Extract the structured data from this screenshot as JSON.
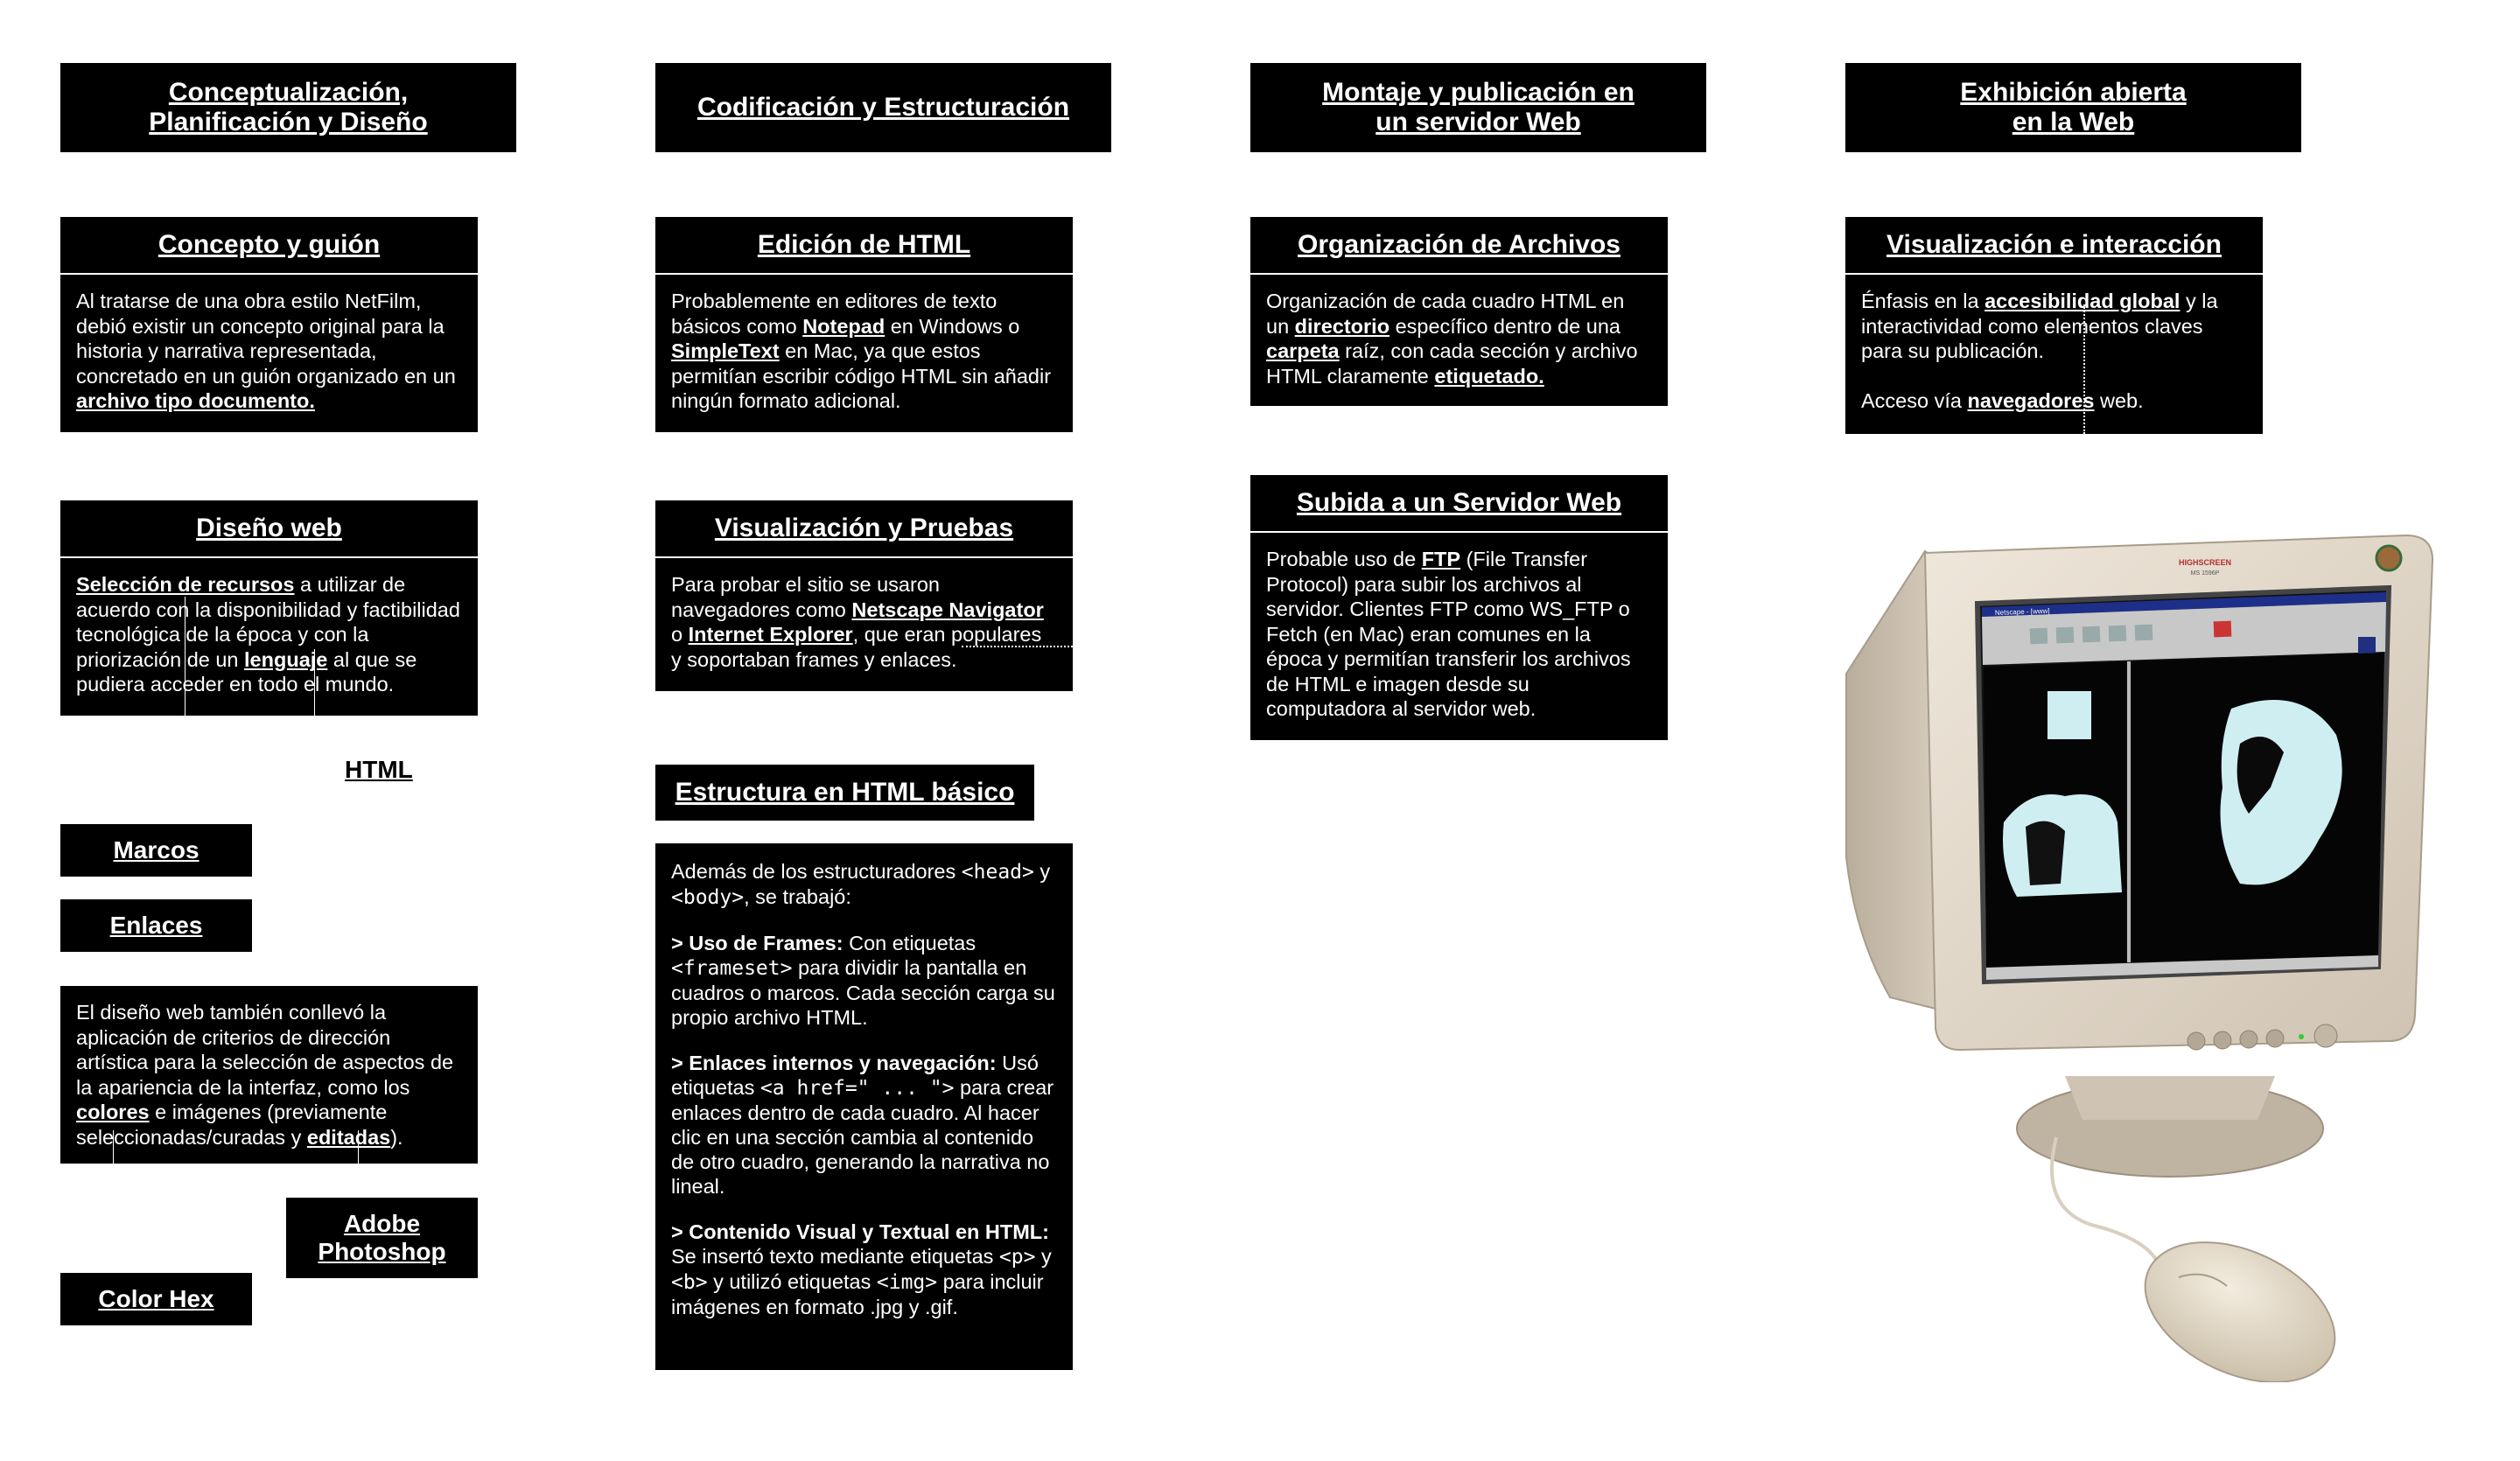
{
  "phases": [
    {
      "line1": "Conceptualización,",
      "line2": "Planificación y Diseño"
    },
    {
      "line1": "Codificación y Estructuración",
      "line2": ""
    },
    {
      "line1": "Montaje y publicación en",
      "line2": "un servidor Web"
    },
    {
      "line1": "Exhibición abierta",
      "line2": "en la Web"
    }
  ],
  "concepto": {
    "title": "Concepto y guión",
    "text": "Al tratarse de una obra estilo NetFilm, debió existir un concepto original para la historia y narrativa representada, concretado en un guión organizado en un ",
    "link": "archivo tipo documento."
  },
  "diseno": {
    "title": "Diseño web",
    "t1": "Selección de recursos",
    "t2": " a utilizar de acuerdo con la disponibilidad y factibilidad tecnológica de la época y con la priorización de un ",
    "t3": "lenguaje",
    "t4": " al que se pudiera acceder en todo el mundo."
  },
  "tags": {
    "html": "HTML",
    "marcos": "Marcos",
    "enlaces": "Enlaces",
    "adobe_1": "Adobe",
    "adobe_2": "Photoshop",
    "colorhex": "Color Hex"
  },
  "direccion": {
    "t1": "El diseño web también conllevó la aplicación de criterios de dirección artística para la selección de aspectos de la apariencia de la interfaz, como los ",
    "t2": "colores",
    "t3": " e imágenes (previamente seleccionadas/curadas y ",
    "t4": "editadas",
    "t5": ")."
  },
  "edicion": {
    "title": "Edición de HTML",
    "t1": "Probablemente en editores de texto básicos como ",
    "t2": "Notepad",
    "t3": " en Windows o ",
    "t4": "SimpleText",
    "t5": " en Mac, ya que estos permitían escribir código HTML sin añadir ningún formato adicional."
  },
  "visualizacion": {
    "title": "Visualización y Pruebas",
    "t1": "Para probar el sitio se usaron navegadores como ",
    "t2": "Netscape Navigator",
    "t3": " o ",
    "t4": "Internet Explorer",
    "t5": ", que eran populares y soportaban frames y enlaces."
  },
  "estructura": {
    "title": "Estructura en HTML básico",
    "p1a": "Además de los estructuradores ",
    "p1b": "<head>",
    "p1c": " y ",
    "p1d": "<body>",
    "p1e": ", se trabajó:",
    "p2a": "> Uso de Frames:",
    "p2b": " Con etiquetas ",
    "p2c": "<frameset>",
    "p2d": " para dividir la pantalla en cuadros o marcos. Cada sección carga su propio archivo HTML.",
    "p3a": "> Enlaces internos y navegación:",
    "p3b": " Usó etiquetas ",
    "p3c": "<a href=\" ... \">",
    "p3d": " para crear enlaces dentro de cada cuadro. Al hacer clic en una sección cambia al contenido de otro cuadro, generando la narrativa no lineal.",
    "p4a": "> Contenido Visual y Textual en HTML:",
    "p4b": " Se insertó texto mediante etiquetas ",
    "p4c": "<p>",
    "p4d": " y ",
    "p4e": "<b>",
    "p4f": " y utilizó etiquetas ",
    "p4g": "<img>",
    "p4h": " para incluir imágenes en formato .jpg y .gif."
  },
  "organizacion": {
    "title": "Organización de Archivos",
    "t1": "Organización de cada cuadro HTML en un ",
    "t2": "directorio",
    "t3": " específico dentro de una ",
    "t4": "carpeta",
    "t5": " raíz, con cada sección y archivo HTML claramente ",
    "t6": "etiquetado."
  },
  "subida": {
    "title": "Subida a un Servidor Web",
    "t1": "Probable uso de ",
    "t2": "FTP",
    "t3": " (File Transfer Protocol) para subir los archivos al servidor. Clientes FTP como WS_FTP o Fetch (en Mac) eran comunes en la época y permitían transferir los archivos de HTML e imagen desde su computadora al servidor web."
  },
  "interaccion": {
    "title": "Visualización e interacción",
    "t1": "Énfasis en la ",
    "t2": "accesibilidad global",
    "t3": " y la interactividad como elementos claves para su publicación.",
    "t4": "Acceso vía ",
    "t5": "navegadores",
    "t6": " web."
  },
  "monitor": {
    "brand": "HIGHSCREEN",
    "model": "MS 1596P",
    "browser_title": "Netscape - [www]"
  },
  "colors": {
    "box": "#000000",
    "text": "#ffffff",
    "monitor": "#e6ddd0",
    "screen_bg": "#0a0a0a",
    "figure": "#cfeef2"
  }
}
